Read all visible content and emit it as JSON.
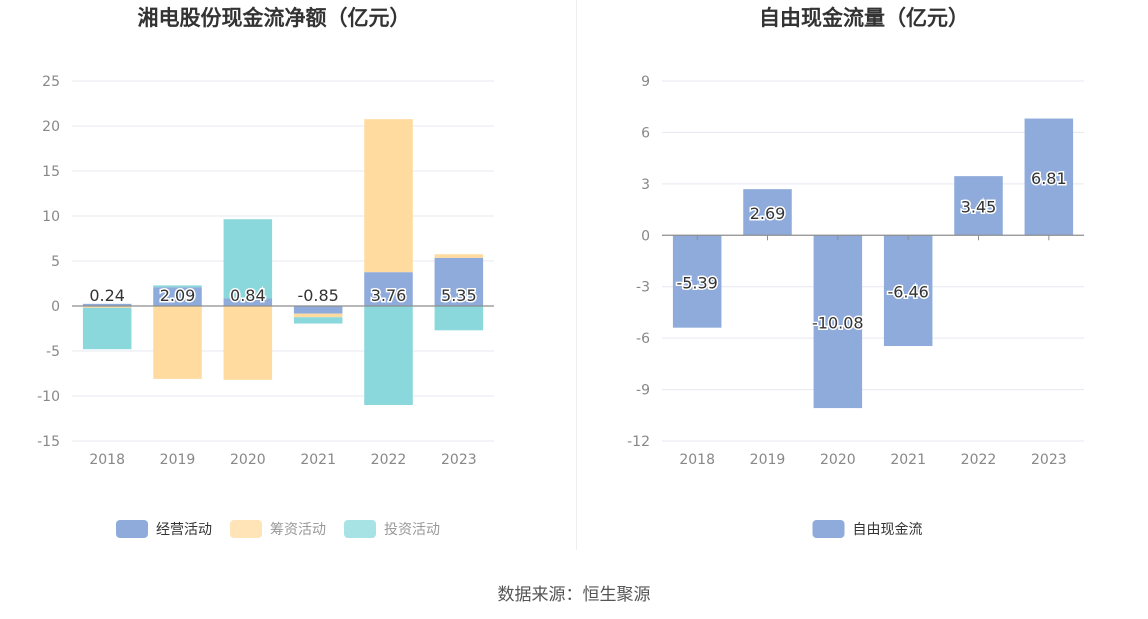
{
  "colors": {
    "operating": "#8eabdb",
    "financing": "#ffdba0",
    "investing": "#8ad8db",
    "free_cash_flow": "#8eabdb"
  },
  "source": "数据来源：恒生聚源",
  "chart_data": [
    {
      "type": "bar",
      "stacked": true,
      "title": "湘电股份现金流净额（亿元）",
      "categories": [
        "2018",
        "2019",
        "2020",
        "2021",
        "2022",
        "2023"
      ],
      "ylim": [
        -15,
        25
      ],
      "yticks": [
        "25",
        "20",
        "15",
        "10",
        "5",
        "0",
        "-5",
        "-10",
        "-15"
      ],
      "grid": true,
      "legend_position": "bottom",
      "series": [
        {
          "name": "经营活动",
          "color": "#8eabdb",
          "values": [
            0.24,
            2.09,
            0.84,
            -0.85,
            3.76,
            5.35
          ],
          "labels": [
            "0.24",
            "2.09",
            "0.84",
            "-0.85",
            "3.76",
            "5.35"
          ]
        },
        {
          "name": "筹资活动",
          "color": "#ffdba0",
          "values": [
            -0.2,
            -8.1,
            -8.2,
            -0.4,
            17.0,
            0.4
          ]
        },
        {
          "name": "投资活动",
          "color": "#8ad8db",
          "values": [
            -4.6,
            0.2,
            8.8,
            -0.7,
            -11.0,
            -2.7
          ]
        }
      ]
    },
    {
      "type": "bar",
      "title": "自由现金流量（亿元）",
      "categories": [
        "2018",
        "2019",
        "2020",
        "2021",
        "2022",
        "2023"
      ],
      "ylim": [
        -12,
        9
      ],
      "yticks": [
        "9",
        "6",
        "3",
        "0",
        "-3",
        "-6",
        "-9",
        "-12"
      ],
      "grid": true,
      "legend_position": "bottom",
      "series": [
        {
          "name": "自由现金流",
          "color": "#8eabdb",
          "values": [
            -5.39,
            2.69,
            -10.08,
            -6.46,
            3.45,
            6.81
          ],
          "labels": [
            "-5.39",
            "2.69",
            "-10.08",
            "-6.46",
            "3.45",
            "6.81"
          ]
        }
      ]
    }
  ]
}
